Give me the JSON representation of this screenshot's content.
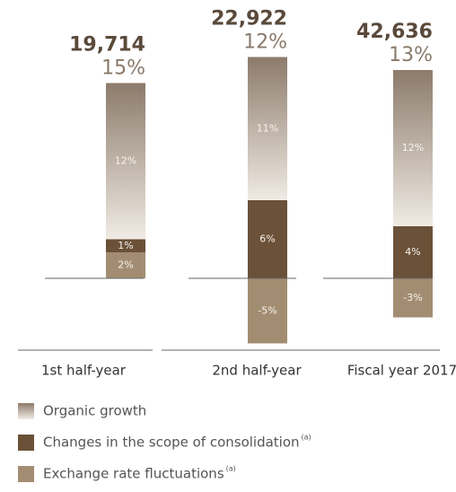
{
  "chart_data": {
    "type": "stacked_bar",
    "categories": [
      "1st half-year",
      "2nd half-year",
      "Fiscal year 2017"
    ],
    "series": [
      {
        "name": "Organic growth",
        "color": "#8c7b6b",
        "values": [
          12,
          11,
          12
        ],
        "value_labels": [
          "12%",
          "11%",
          "12%"
        ]
      },
      {
        "name": "Changes in the scope of consolidation",
        "footnote_marker": "(a)",
        "color": "#6b5138",
        "values": [
          1,
          6,
          4
        ],
        "value_labels": [
          "1%",
          "6%",
          "4%"
        ]
      },
      {
        "name": "Exchange rate fluctuations",
        "footnote_marker": "(a)",
        "color": "#a38d72",
        "values": [
          2,
          -5,
          -3
        ],
        "value_labels": [
          "2%",
          "-5%",
          "-3%"
        ]
      }
    ],
    "totals": {
      "values": [
        19714,
        22922,
        42636
      ],
      "value_labels": [
        "19,714",
        "22,922",
        "42,636"
      ]
    },
    "total_percent": {
      "values": [
        15,
        12,
        13
      ],
      "value_labels": [
        "15%",
        "12%",
        "13%"
      ]
    }
  }
}
